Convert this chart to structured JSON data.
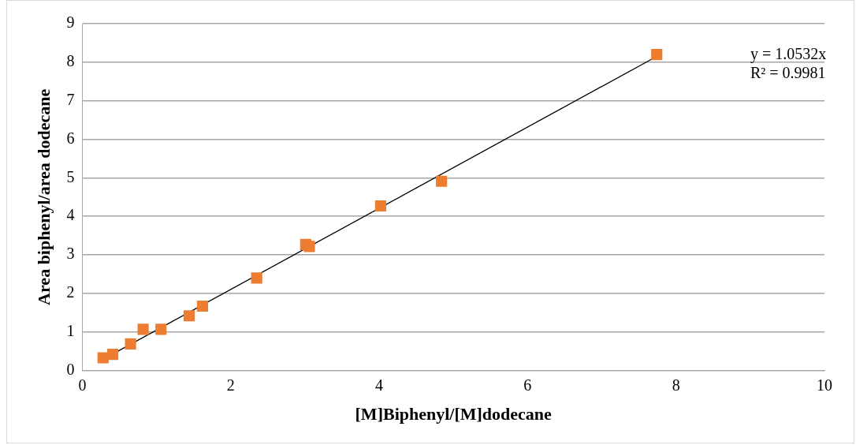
{
  "chart_data": {
    "type": "scatter",
    "xlabel": "[M]Biphenyl/[M]dodecane",
    "ylabel": "Area biphenyl/area dodecane",
    "x": [
      0.28,
      0.41,
      0.65,
      0.82,
      1.06,
      1.44,
      1.62,
      2.35,
      3.01,
      3.06,
      4.02,
      4.84,
      7.74
    ],
    "series": [
      {
        "color": "#ed7d31",
        "marker": "square",
        "values": [
          0.33,
          0.42,
          0.69,
          1.07,
          1.07,
          1.42,
          1.67,
          2.4,
          3.27,
          3.22,
          4.27,
          4.91,
          8.2
        ]
      },
      {
        "type": "line",
        "color": "#000000",
        "marker": "none",
        "x": [
          0.28,
          7.74
        ],
        "values": [
          0.29,
          8.15
        ]
      }
    ],
    "xlim": [
      0,
      10
    ],
    "xticks": [
      0,
      2,
      4,
      6,
      8,
      10
    ],
    "ylim": [
      0,
      9
    ],
    "yticks": [
      0,
      1,
      2,
      3,
      4,
      5,
      6,
      7,
      8,
      9
    ],
    "grid": "y",
    "legend": false,
    "annotations": [
      "y = 1.0532x",
      "R² = 0.9981"
    ]
  }
}
